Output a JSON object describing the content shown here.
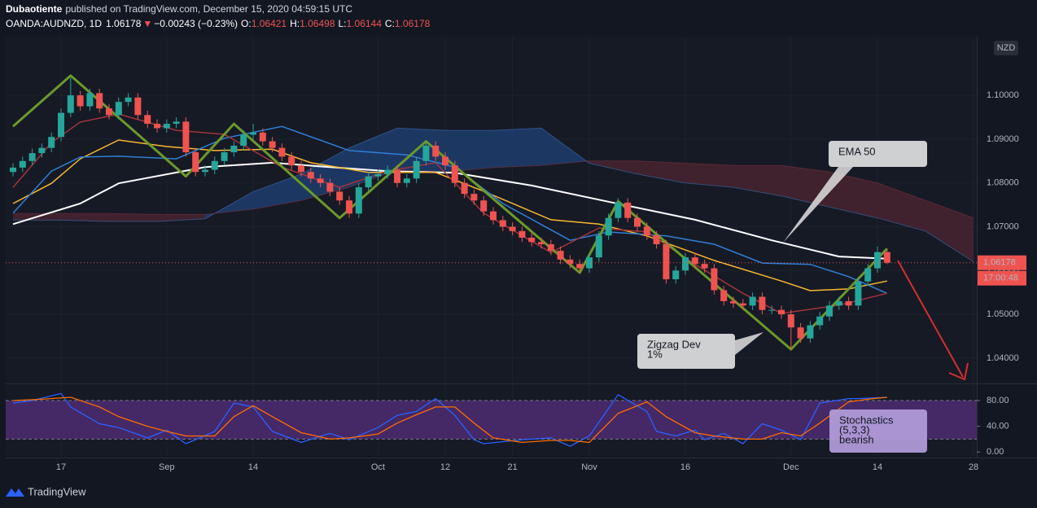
{
  "header": {
    "author": "Dubaotiente",
    "published": "published on TradingView.com, December 15, 2020 04:59:15 UTC",
    "symbol": "OANDA:AUDNZD, 1D",
    "last": "1.06178",
    "arrow": "▼",
    "change": "−0.00243 (−0.23%)",
    "o_label": "O:",
    "o": "1.06421",
    "h_label": "H:",
    "h": "1.06498",
    "l_label": "L:",
    "l": "1.06144",
    "c_label": "C:",
    "c": "1.06178"
  },
  "brand": "TradingView",
  "chart_data": [
    {
      "type": "candlestick",
      "categories": [
        null,
        null,
        null,
        null,
        null,
        "17",
        null,
        null,
        null,
        null,
        null,
        null,
        null,
        null,
        null,
        null,
        "Sep",
        null,
        null,
        null,
        null,
        null,
        null,
        null,
        null,
        "14",
        null,
        null,
        null,
        null,
        null,
        null,
        null,
        null,
        null,
        null,
        null,
        null,
        "Oct",
        null,
        null,
        null,
        null,
        null,
        null,
        "12",
        null,
        null,
        null,
        null,
        null,
        null,
        "21",
        null,
        null,
        null,
        null,
        null,
        null,
        null,
        "Nov",
        null,
        null,
        null,
        null,
        null,
        null,
        null,
        null,
        null,
        "16",
        null,
        null,
        null,
        null,
        null,
        null,
        null,
        null,
        null,
        null,
        "Dec",
        null,
        null,
        null,
        null,
        null,
        null,
        null,
        null,
        "14",
        null,
        null,
        null,
        null,
        null,
        null,
        null,
        null,
        null,
        "28"
      ],
      "open": [
        1.0825,
        1.0835,
        1.085,
        1.0868,
        1.088,
        1.0905,
        1.096,
        1.1,
        1.0975,
        1.1005,
        1.097,
        1.0955,
        1.0985,
        1.0995,
        1.0955,
        1.0935,
        1.0925,
        1.0935,
        1.094,
        1.087,
        1.0825,
        1.083,
        1.085,
        1.087,
        1.0885,
        1.091,
        1.0915,
        1.0895,
        1.088,
        1.086,
        1.084,
        1.0825,
        1.081,
        1.08,
        1.078,
        1.076,
        1.073,
        1.079,
        1.0815,
        1.082,
        1.083,
        1.08,
        1.081,
        1.085,
        1.0885,
        1.086,
        1.084,
        1.08,
        1.0775,
        1.076,
        1.0735,
        1.0715,
        1.07,
        1.069,
        1.0675,
        1.0665,
        1.066,
        1.0645,
        1.0625,
        1.0615,
        1.0605,
        1.063,
        1.068,
        1.072,
        1.0755,
        1.072,
        1.07,
        1.068,
        1.066,
        1.058,
        1.06,
        1.063,
        1.0615,
        1.0605,
        1.0555,
        1.053,
        1.0525,
        1.052,
        1.054,
        1.051,
        1.051,
        1.05,
        1.047,
        1.0445,
        1.0475,
        1.0495,
        1.052,
        1.053,
        1.052,
        1.0575,
        1.0605,
        1.06421,
        null,
        null,
        null,
        null,
        null,
        null,
        null,
        null,
        null
      ],
      "high": [
        1.0845,
        1.086,
        1.0878,
        1.089,
        1.0915,
        1.097,
        1.104,
        1.101,
        1.1015,
        1.1015,
        1.098,
        1.0995,
        1.1005,
        1.1005,
        1.0965,
        1.0945,
        1.0945,
        1.095,
        1.095,
        1.088,
        1.084,
        1.086,
        1.088,
        1.0895,
        1.092,
        1.0935,
        1.0925,
        1.0905,
        1.089,
        1.087,
        1.085,
        1.0835,
        1.082,
        1.081,
        1.079,
        1.077,
        1.08,
        1.0825,
        1.083,
        1.084,
        1.084,
        1.082,
        1.086,
        1.0895,
        1.0895,
        1.087,
        1.085,
        1.081,
        1.0785,
        1.077,
        1.0745,
        1.0725,
        1.071,
        1.07,
        1.0685,
        1.0675,
        1.067,
        1.0655,
        1.0635,
        1.0625,
        1.064,
        1.069,
        1.073,
        1.0765,
        1.0765,
        1.073,
        1.071,
        1.069,
        1.067,
        1.061,
        1.064,
        1.064,
        1.0625,
        1.0615,
        1.0565,
        1.054,
        1.0535,
        1.055,
        1.055,
        1.052,
        1.052,
        1.051,
        1.048,
        1.0485,
        1.0505,
        1.053,
        1.054,
        1.054,
        1.0585,
        1.0615,
        1.0655,
        1.06498,
        null,
        null,
        null,
        null,
        null,
        null,
        null,
        null,
        null
      ],
      "low": [
        1.0815,
        1.0825,
        1.084,
        1.0858,
        1.087,
        1.0895,
        1.095,
        1.0965,
        1.0965,
        1.096,
        1.0945,
        1.0945,
        1.0975,
        1.0945,
        1.0925,
        1.0915,
        1.0915,
        1.0925,
        1.086,
        1.0815,
        1.0815,
        1.082,
        1.084,
        1.086,
        1.0875,
        1.09,
        1.0885,
        1.087,
        1.085,
        1.083,
        1.0815,
        1.08,
        1.079,
        1.077,
        1.075,
        1.072,
        1.072,
        1.078,
        1.0805,
        1.081,
        1.079,
        1.079,
        1.08,
        1.084,
        1.085,
        1.083,
        1.079,
        1.0765,
        1.075,
        1.0725,
        1.0705,
        1.069,
        1.068,
        1.0665,
        1.0655,
        1.065,
        1.0635,
        1.0615,
        1.0605,
        1.0595,
        1.0595,
        1.062,
        1.067,
        1.071,
        1.071,
        1.069,
        1.067,
        1.065,
        1.057,
        1.057,
        1.059,
        1.0605,
        1.0595,
        1.0545,
        1.052,
        1.0515,
        1.051,
        1.051,
        1.05,
        1.05,
        1.049,
        1.042,
        1.0435,
        1.0435,
        1.0465,
        1.0485,
        1.051,
        1.051,
        1.051,
        1.0565,
        1.0595,
        1.06144,
        null,
        null,
        null,
        null,
        null,
        null,
        null,
        null,
        null
      ],
      "close": [
        1.0835,
        1.085,
        1.0868,
        1.088,
        1.0905,
        1.096,
        1.1,
        1.0975,
        1.1005,
        1.097,
        1.0955,
        1.0985,
        1.0995,
        1.0955,
        1.0935,
        1.0925,
        1.0935,
        1.094,
        1.087,
        1.0825,
        1.083,
        1.085,
        1.087,
        1.0885,
        1.091,
        1.0915,
        1.0895,
        1.088,
        1.086,
        1.084,
        1.0825,
        1.081,
        1.08,
        1.078,
        1.076,
        1.073,
        1.079,
        1.0815,
        1.082,
        1.083,
        1.08,
        1.081,
        1.085,
        1.0885,
        1.086,
        1.084,
        1.08,
        1.0775,
        1.076,
        1.0735,
        1.0715,
        1.07,
        1.069,
        1.0675,
        1.0665,
        1.066,
        1.0645,
        1.0625,
        1.0615,
        1.0605,
        1.063,
        1.068,
        1.072,
        1.0755,
        1.072,
        1.07,
        1.068,
        1.066,
        1.058,
        1.06,
        1.063,
        1.0615,
        1.0605,
        1.0555,
        1.053,
        1.0525,
        1.052,
        1.054,
        1.051,
        1.051,
        1.05,
        1.047,
        1.0445,
        1.0475,
        1.0495,
        1.052,
        1.053,
        1.052,
        1.0575,
        1.0605,
        1.06421,
        1.06178,
        null,
        null,
        null,
        null,
        null,
        null,
        null,
        null,
        null
      ],
      "up_color": "#26a69a",
      "down_color": "#ef5350",
      "ylim": [
        1.0344,
        1.1134
      ],
      "yticks": [
        {
          "value": 1.04,
          "label": "1.04000"
        },
        {
          "value": 1.05,
          "label": "1.05000"
        },
        {
          "value": 1.06,
          "label": "1.06000"
        },
        {
          "value": 1.07,
          "label": "1.07000"
        },
        {
          "value": 1.08,
          "label": "1.08000"
        },
        {
          "value": 1.09,
          "label": "1.09000"
        },
        {
          "value": 1.1,
          "label": "1.10000"
        }
      ],
      "currency": "NZD",
      "price_label": "1.06178",
      "countdown": "17:00:48",
      "overlays": [
        {
          "color": "#ffffff",
          "x": [
            0,
            7,
            11,
            20,
            27,
            33,
            39,
            46,
            54,
            62,
            71,
            79,
            86,
            91
          ],
          "values": [
            1.0706,
            1.0753,
            1.0799,
            1.0836,
            1.0846,
            1.0836,
            1.0827,
            1.0823,
            1.0794,
            1.0757,
            1.0716,
            1.0669,
            1.0632,
            1.0627
          ]
        },
        {
          "color": "#f7b731",
          "x": [
            0,
            4,
            7,
            11,
            16,
            21,
            27,
            31,
            37,
            44,
            49,
            56,
            61,
            66,
            73,
            80,
            83,
            87,
            91
          ],
          "values": [
            1.0753,
            1.0799,
            1.0855,
            1.0898,
            1.0883,
            1.0874,
            1.0877,
            1.0846,
            1.0824,
            1.0824,
            1.0781,
            1.0716,
            1.0706,
            1.0679,
            1.0623,
            1.0576,
            1.0554,
            1.0558,
            1.0576
          ]
        },
        {
          "color": "#2f7fd6",
          "x": [
            0,
            4,
            7,
            11,
            17,
            22,
            28,
            35,
            41,
            46,
            51,
            58,
            62,
            68,
            73,
            78,
            83,
            87,
            91
          ],
          "values": [
            1.0731,
            1.0827,
            1.0859,
            1.0861,
            1.0855,
            1.0902,
            1.0929,
            1.0874,
            1.0864,
            1.0836,
            1.0753,
            1.0669,
            1.0688,
            1.0679,
            1.066,
            1.0617,
            1.0614,
            1.0586,
            1.0548
          ]
        },
        {
          "color": "#a3343a",
          "x": [
            0,
            4,
            7,
            11,
            17,
            22,
            28,
            34,
            39,
            44,
            49,
            56,
            61,
            66,
            71,
            76,
            80,
            86,
            91
          ],
          "values": [
            1.079,
            1.0892,
            1.0939,
            1.0957,
            1.092,
            1.0911,
            1.0836,
            1.079,
            1.0827,
            1.0846,
            1.0731,
            1.0641,
            1.0697,
            1.0688,
            1.0614,
            1.0548,
            1.0502,
            1.0521,
            1.0548
          ]
        }
      ],
      "cloud": {
        "x": [
          0,
          5,
          10,
          15,
          20,
          25,
          30,
          35,
          40,
          45,
          50,
          55,
          60,
          65,
          70,
          75,
          80,
          85,
          90,
          95,
          100
        ],
        "span_a": [
          1.0715,
          1.0715,
          1.0712,
          1.0712,
          1.0718,
          1.078,
          1.082,
          1.088,
          1.0925,
          1.092,
          1.092,
          1.0925,
          1.0845,
          1.082,
          1.08,
          1.079,
          1.077,
          1.0745,
          1.072,
          1.069,
          1.062
        ],
        "span_b": [
          1.073,
          1.073,
          1.073,
          1.0728,
          1.0728,
          1.074,
          1.076,
          1.079,
          1.083,
          1.0825,
          1.0835,
          1.084,
          1.085,
          1.085,
          1.0845,
          1.084,
          1.084,
          1.0825,
          1.08,
          1.076,
          1.072
        ],
        "up_color": "#1f3f73",
        "down_color": "#4a2430"
      },
      "zigzag": {
        "color": "#6a9a2a",
        "x": [
          0,
          6,
          18,
          23,
          34,
          43,
          59,
          63,
          81,
          91
        ],
        "values": [
          1.0929,
          1.1045,
          1.0815,
          1.0935,
          1.072,
          1.0895,
          1.0595,
          1.0758,
          1.042,
          1.065
        ]
      },
      "annotations": [
        {
          "lines": [
            "EMA 50"
          ]
        },
        {
          "lines": [
            "Zigzag Dev",
            "1%"
          ]
        }
      ]
    },
    {
      "type": "line",
      "series": [
        {
          "color": "#2962ff",
          "x": [
            0,
            2,
            5,
            6,
            9,
            11,
            14,
            16,
            18,
            21,
            23,
            25,
            27,
            30,
            33,
            35,
            38,
            40,
            42,
            44,
            46,
            48,
            49,
            53,
            56,
            58,
            60,
            63,
            66,
            67,
            69,
            71,
            72,
            74,
            76,
            78,
            80,
            82,
            84,
            87,
            88,
            91
          ],
          "values": [
            76,
            80,
            91,
            70,
            44,
            38,
            22,
            34,
            13,
            32,
            76,
            70,
            32,
            15,
            29,
            19,
            38,
            57,
            63,
            83,
            57,
            19,
            13,
            19,
            22,
            9,
            25,
            89,
            63,
            32,
            25,
            34,
            19,
            29,
            13,
            44,
            34,
            19,
            76,
            83,
            83,
            85
          ]
        },
        {
          "color": "#ff6d00",
          "x": [
            0,
            3,
            6,
            9,
            11,
            14,
            16,
            18,
            21,
            23,
            25,
            27,
            30,
            33,
            35,
            38,
            40,
            42,
            44,
            46,
            48,
            50,
            53,
            56,
            58,
            60,
            63,
            66,
            68,
            71,
            73,
            76,
            78,
            80,
            82,
            84,
            87,
            89,
            91
          ],
          "values": [
            80,
            82,
            85,
            70,
            55,
            40,
            32,
            25,
            25,
            55,
            72,
            55,
            30,
            20,
            22,
            28,
            45,
            58,
            70,
            70,
            45,
            22,
            15,
            18,
            18,
            15,
            60,
            78,
            55,
            30,
            25,
            20,
            20,
            30,
            25,
            45,
            78,
            82,
            85
          ]
        }
      ],
      "ylim": [
        -6,
        104
      ],
      "yticks": [
        {
          "value": 0,
          "label": "0.00"
        },
        {
          "value": 40,
          "label": "40.00"
        },
        {
          "value": 80,
          "label": "80.00"
        }
      ],
      "bands": [
        20,
        80
      ],
      "band_color": "#4a2a6e",
      "annotations": [
        {
          "lines": [
            "Stochastics",
            "(5,3,3)",
            "bearish"
          ]
        }
      ]
    }
  ]
}
